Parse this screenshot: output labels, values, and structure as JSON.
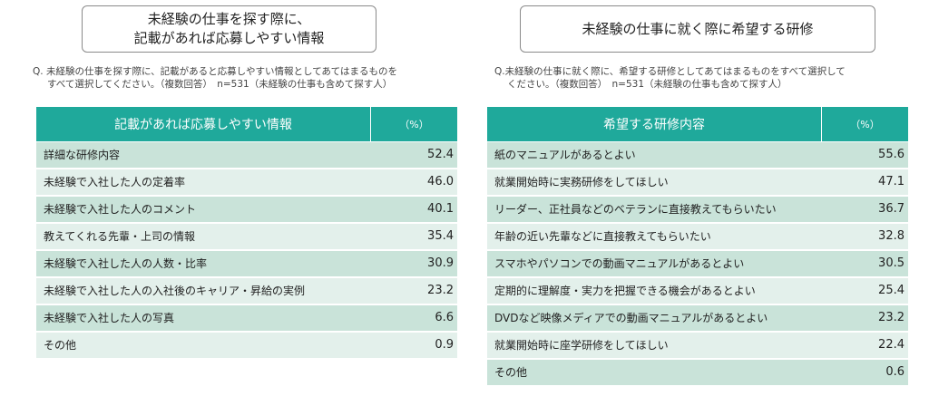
{
  "left": {
    "title": "未経験の仕事を探す際に、\n記載があれば応募しやすい情報",
    "question_line1": "Q.  未経験の仕事を探す際に、記載があると応募しやすい情報としてあてはまるものを",
    "question_line2": "すべて選択してください。（複数回答）　n=531（未経験の仕事も含めて探す人）",
    "header_label": "記載があれば応募しやすい情報",
    "header_unit": "（%）",
    "rows": [
      {
        "label": "詳細な研修内容",
        "value": "52.4"
      },
      {
        "label": "未経験で入社した人の定着率",
        "value": "46.0"
      },
      {
        "label": "未経験で入社した人のコメント",
        "value": "40.1"
      },
      {
        "label": "教えてくれる先輩・上司の情報",
        "value": "35.4"
      },
      {
        "label": "未経験で入社した人の人数・比率",
        "value": "30.9"
      },
      {
        "label": "未経験で入社した人の入社後のキャリア・昇給の実例",
        "value": "23.2"
      },
      {
        "label": "未経験で入社した人の写真",
        "value": "6.6"
      },
      {
        "label": "その他",
        "value": "0.9"
      }
    ]
  },
  "right": {
    "title": "未経験の仕事に就く際に希望する研修",
    "question_line1": "Q.未経験の仕事に就く際に、希望する研修としてあてはまるものをすべて選択して",
    "question_line2": "ください。（複数回答）　n=531（未経験の仕事も含めて探す人）",
    "header_label": "希望する研修内容",
    "header_unit": "（%）",
    "rows": [
      {
        "label": "紙のマニュアルがあるとよい",
        "value": "55.6"
      },
      {
        "label": "就業開始時に実務研修をしてほしい",
        "value": "47.1"
      },
      {
        "label": "リーダー、正社員などのベテランに直接教えてもらいたい",
        "value": "36.7"
      },
      {
        "label": "年齢の近い先輩などに直接教えてもらいたい",
        "value": "32.8"
      },
      {
        "label": "スマホやパソコンでの動画マニュアルがあるとよい",
        "value": "30.5"
      },
      {
        "label": "定期的に理解度・実力を把握できる機会があるとよい",
        "value": "25.4"
      },
      {
        "label": "DVDなど映像メディアでの動画マニュアルがあるとよい",
        "value": "23.2"
      },
      {
        "label": "就業開始時に座学研修をしてほしい",
        "value": "22.4"
      },
      {
        "label": "その他",
        "value": "0.6"
      }
    ]
  }
}
